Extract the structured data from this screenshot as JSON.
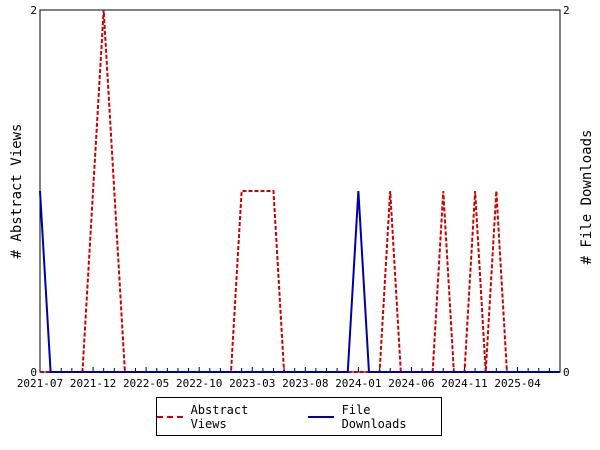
{
  "chart_data": {
    "type": "line",
    "ylabel_left": "# Abstract Views",
    "ylabel_right": "# File Downloads",
    "ylim": [
      0,
      2
    ],
    "y_ticks_left": [
      "0",
      "2"
    ],
    "y_ticks_right": [
      "0",
      "2"
    ],
    "x_tick_labels": [
      "2021-07",
      "2021-12",
      "2022-05",
      "2022-10",
      "2023-03",
      "2023-08",
      "2024-01",
      "2024-06",
      "2024-11",
      "2025-04"
    ],
    "x_months": [
      "2021-07",
      "2021-08",
      "2021-09",
      "2021-10",
      "2021-11",
      "2021-12",
      "2022-01",
      "2022-02",
      "2022-03",
      "2022-04",
      "2022-05",
      "2022-06",
      "2022-07",
      "2022-08",
      "2022-09",
      "2022-10",
      "2022-11",
      "2022-12",
      "2023-01",
      "2023-02",
      "2023-03",
      "2023-04",
      "2023-05",
      "2023-06",
      "2023-07",
      "2023-08",
      "2023-09",
      "2023-10",
      "2023-11",
      "2023-12",
      "2024-01",
      "2024-02",
      "2024-03",
      "2024-04",
      "2024-05",
      "2024-06",
      "2024-07",
      "2024-08",
      "2024-09",
      "2024-10",
      "2024-11",
      "2024-12",
      "2025-01",
      "2025-02",
      "2025-03",
      "2025-04",
      "2025-05",
      "2025-06",
      "2025-07",
      "2025-08"
    ],
    "series": [
      {
        "name": "Abstract Views",
        "color": "#cc0000",
        "dash": true,
        "axis": "left",
        "values": [
          0,
          0,
          0,
          0,
          0,
          1,
          2,
          1,
          0,
          0,
          0,
          0,
          0,
          0,
          0,
          0,
          0,
          0,
          0,
          1,
          1,
          1,
          1,
          0,
          0,
          0,
          0,
          0,
          0,
          0,
          0,
          0,
          0,
          1,
          0,
          0,
          0,
          0,
          1,
          0,
          0,
          1,
          0,
          1,
          0,
          0,
          0,
          0,
          0,
          0
        ]
      },
      {
        "name": "File Downloads",
        "color": "#0000aa",
        "dash": false,
        "axis": "right",
        "values": [
          1,
          0,
          0,
          0,
          0,
          0,
          0,
          0,
          0,
          0,
          0,
          0,
          0,
          0,
          0,
          0,
          0,
          0,
          0,
          0,
          0,
          0,
          0,
          0,
          0,
          0,
          0,
          0,
          0,
          0,
          1,
          0,
          0,
          0,
          0,
          0,
          0,
          0,
          0,
          0,
          0,
          0,
          0,
          0,
          0,
          0,
          0,
          0,
          0,
          0
        ]
      }
    ],
    "legend": [
      "Abstract Views",
      "File Downloads"
    ],
    "legend_position": "bottom-center",
    "grid": false
  }
}
